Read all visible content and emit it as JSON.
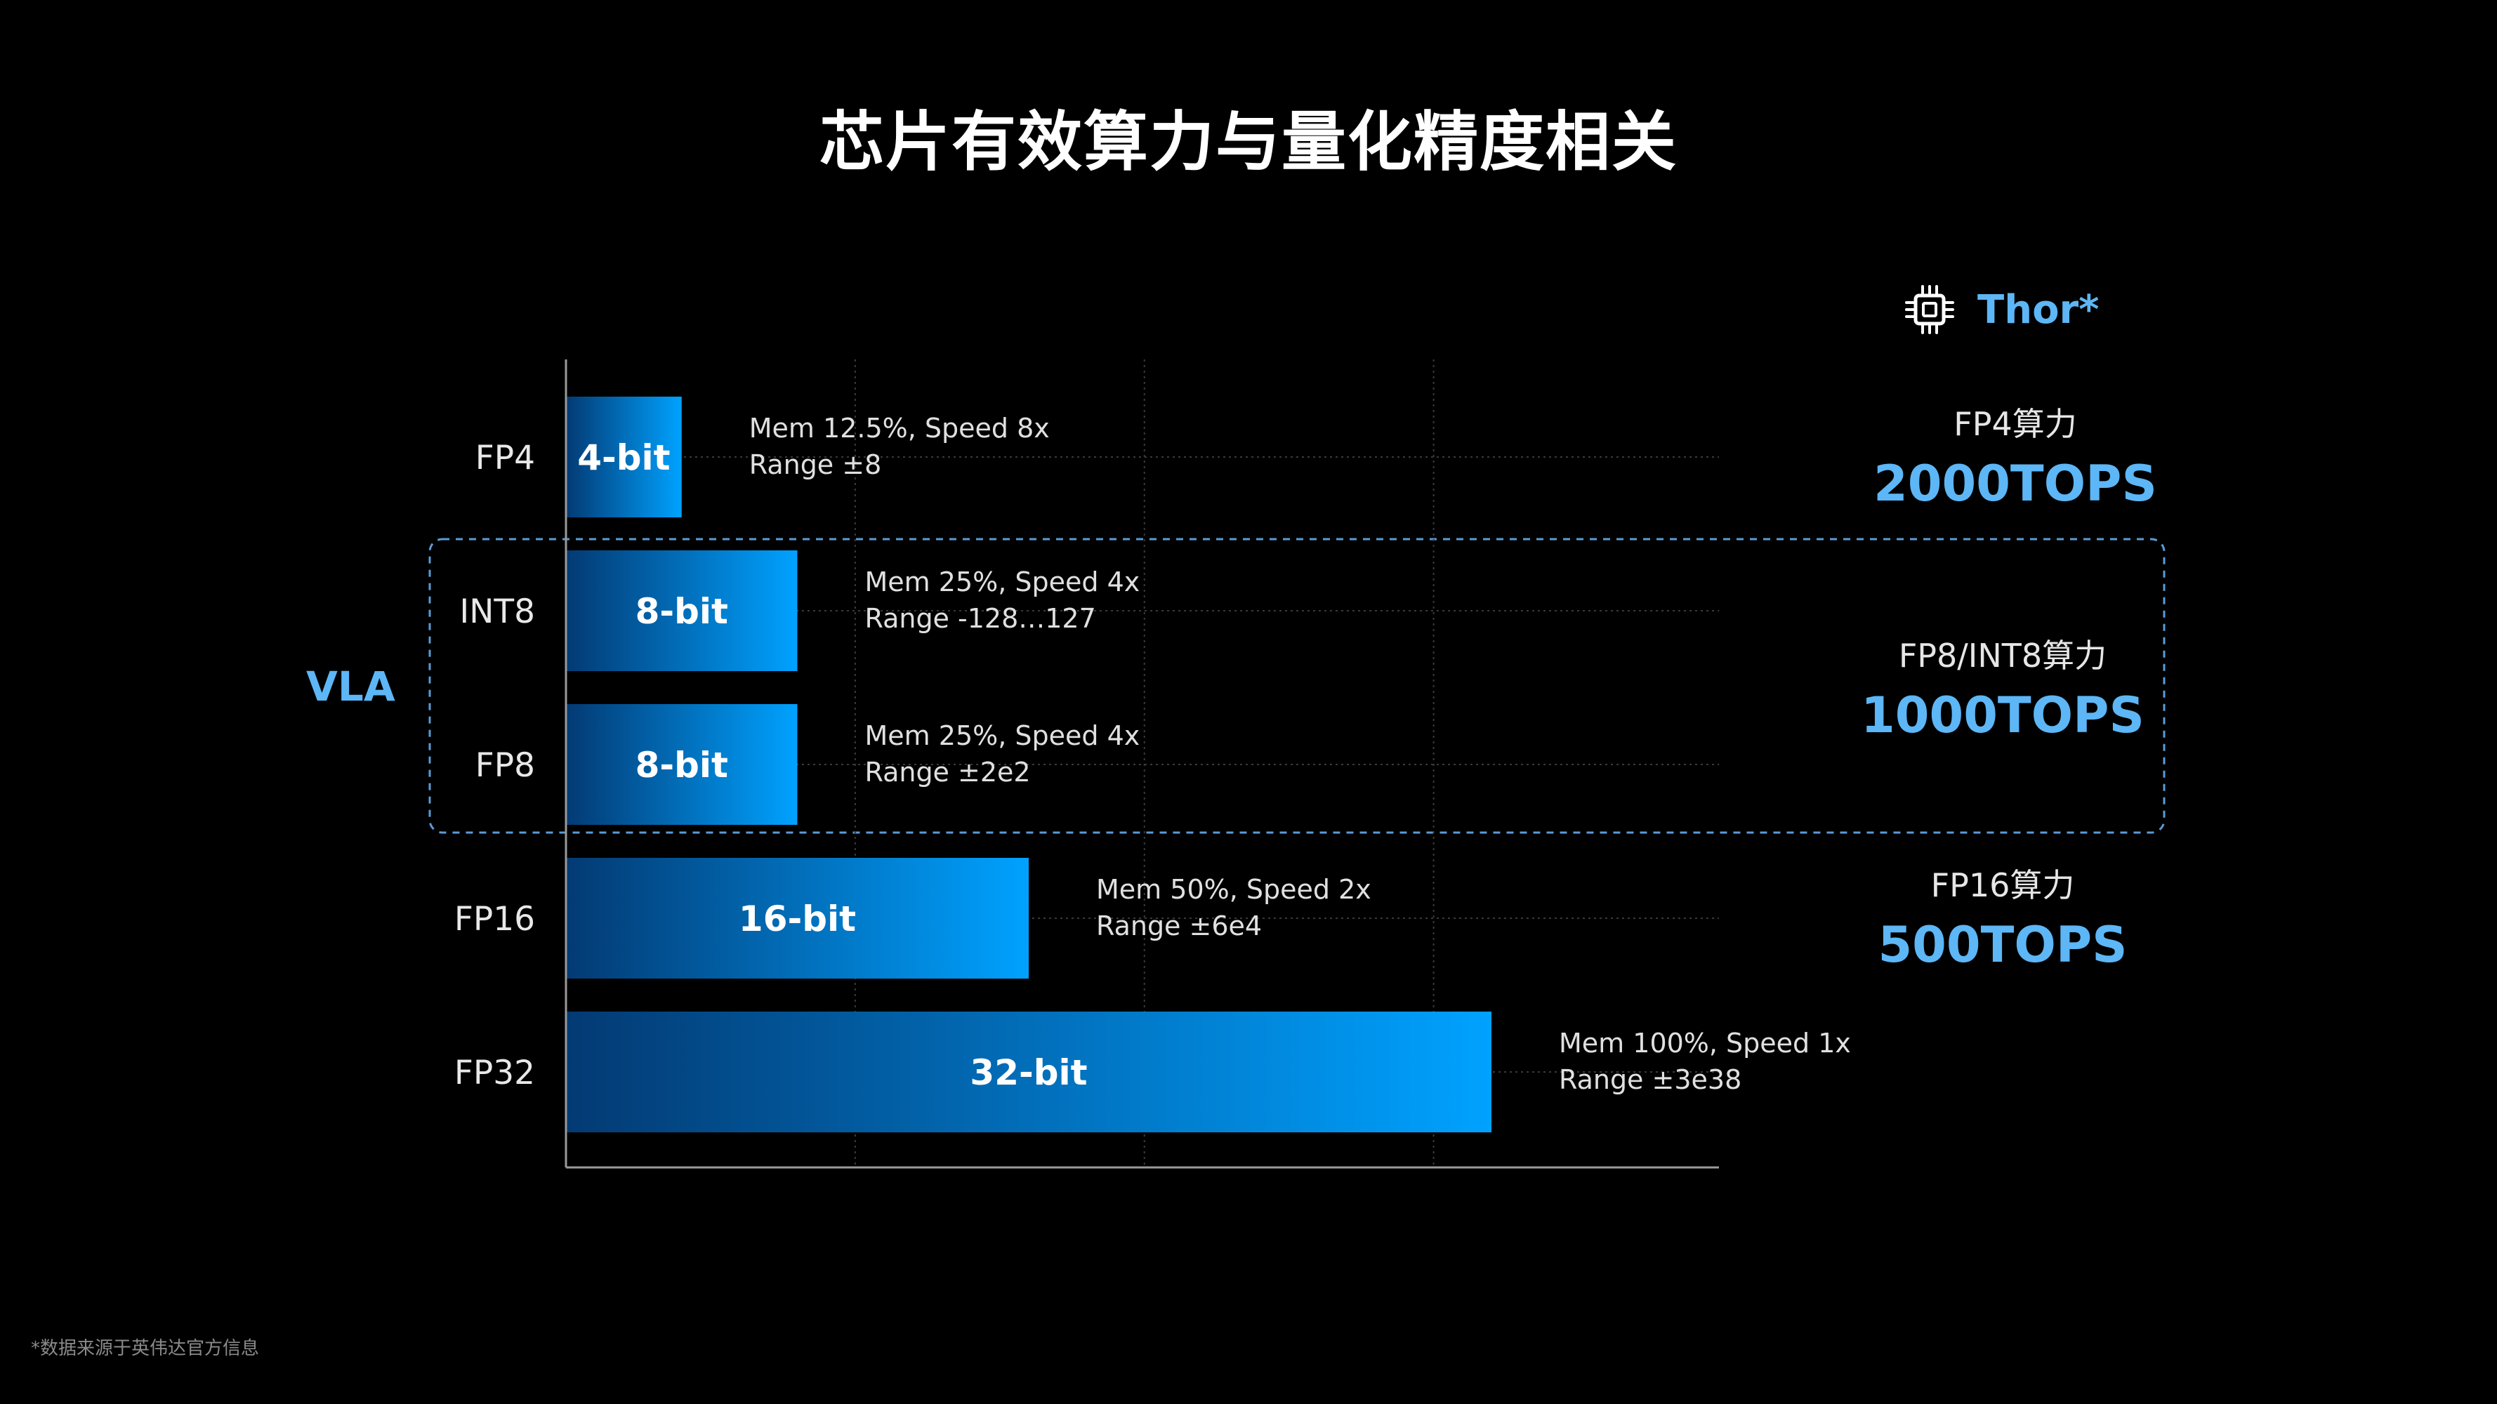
{
  "title": "芯片有效算力与量化精度相关",
  "chart_data": {
    "type": "bar",
    "orientation": "horizontal",
    "title": "芯片有效算力与量化精度相关",
    "categories": [
      "FP4",
      "INT8",
      "FP8",
      "FP16",
      "FP32"
    ],
    "values": [
      4,
      8,
      8,
      16,
      32
    ],
    "bar_labels": [
      "4-bit",
      "8-bit",
      "8-bit",
      "16-bit",
      "32-bit"
    ],
    "annotations": [
      [
        "Mem 12.5%, Speed 8x",
        "Range ±8"
      ],
      [
        "Mem 25%, Speed 4x",
        "Range -128…127"
      ],
      [
        "Mem 25%, Speed 4x",
        "Range ±2e2"
      ],
      [
        "Mem 50%, Speed 2x",
        "Range ±6e4"
      ],
      [
        "Mem 100%, Speed 1x",
        "Range ±3e38"
      ]
    ],
    "xlim": [
      0,
      40
    ],
    "grid": true,
    "group_label": "VLA",
    "group_categories": [
      "INT8",
      "FP8"
    ]
  },
  "thor": {
    "label": "Thor*",
    "icon": "chip-icon"
  },
  "side_panels": [
    {
      "label": "FP4算力",
      "value": "2000TOPS"
    },
    {
      "label": "FP8/INT8算力",
      "value": "1000TOPS"
    },
    {
      "label": "FP16算力",
      "value": "500TOPS"
    }
  ],
  "footnote": "*数据来源于英伟达官方信息",
  "colors": {
    "background": "#000000",
    "bar_start": "#033a73",
    "bar_end": "#00a2ff",
    "accent": "#5db6f5",
    "group_border": "#5b9bd5"
  }
}
